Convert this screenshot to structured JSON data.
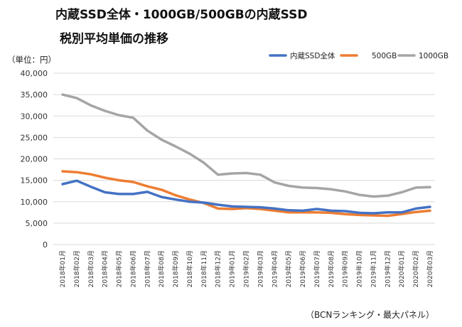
{
  "header": {
    "title_line1": "内蔵SSD全体・1000GB/500GBの内蔵SSD",
    "title_line2": "税別平均単価の推移",
    "unit_label": "（単位：円）",
    "source_note": "（BCNランキング・最大パネル）"
  },
  "chart_data": {
    "type": "line",
    "title": "内蔵SSD全体・1000GB/500GBの内蔵SSD 税別平均単価の推移",
    "xlabel": "",
    "ylabel": "（単位：円）",
    "ylim": [
      0,
      40000
    ],
    "yticks": [
      0,
      5000,
      10000,
      15000,
      20000,
      25000,
      30000,
      35000,
      40000
    ],
    "ytick_labels": [
      "0",
      "5,000",
      "10,000",
      "15,000",
      "20,000",
      "25,000",
      "30,000",
      "35,000",
      "40,000"
    ],
    "grid": true,
    "legend_position": "top-right",
    "categories": [
      "2018年01月",
      "2018年02月",
      "2018年03月",
      "2018年04月",
      "2018年05月",
      "2018年06月",
      "2018年07月",
      "2018年08月",
      "2018年09月",
      "2018年10月",
      "2018年11月",
      "2018年12月",
      "2019年01月",
      "2019年02月",
      "2019年03月",
      "2019年04月",
      "2019年05月",
      "2019年06月",
      "2019年07月",
      "2019年08月",
      "2019年09月",
      "2019年10月",
      "2019年11月",
      "2019年12月",
      "2020年01月",
      "2020年02月",
      "2020年03月"
    ],
    "series": [
      {
        "name": "内蔵SSD全体",
        "color": "#4472C4",
        "values": [
          14100,
          14900,
          13500,
          12200,
          11800,
          11800,
          12300,
          11100,
          10500,
          10000,
          9800,
          9300,
          8900,
          8800,
          8700,
          8400,
          8000,
          7900,
          8300,
          7900,
          7800,
          7400,
          7300,
          7500,
          7500,
          8400,
          8800
        ]
      },
      {
        "name": "500GB",
        "color": "#ED7D31",
        "values": [
          17100,
          16900,
          16400,
          15600,
          15000,
          14600,
          13600,
          12800,
          11500,
          10500,
          9700,
          8400,
          8300,
          8500,
          8300,
          7900,
          7500,
          7500,
          7500,
          7400,
          7100,
          6900,
          6800,
          6700,
          7100,
          7600,
          7900
        ]
      },
      {
        "name": "1000GB",
        "color": "#A5A5A5",
        "values": [
          35000,
          34200,
          32500,
          31200,
          30200,
          29600,
          26600,
          24500,
          22900,
          21200,
          19100,
          16300,
          16600,
          16700,
          16300,
          14500,
          13700,
          13300,
          13200,
          12900,
          12400,
          11600,
          11200,
          11400,
          12200,
          13300,
          13400
        ]
      }
    ]
  }
}
